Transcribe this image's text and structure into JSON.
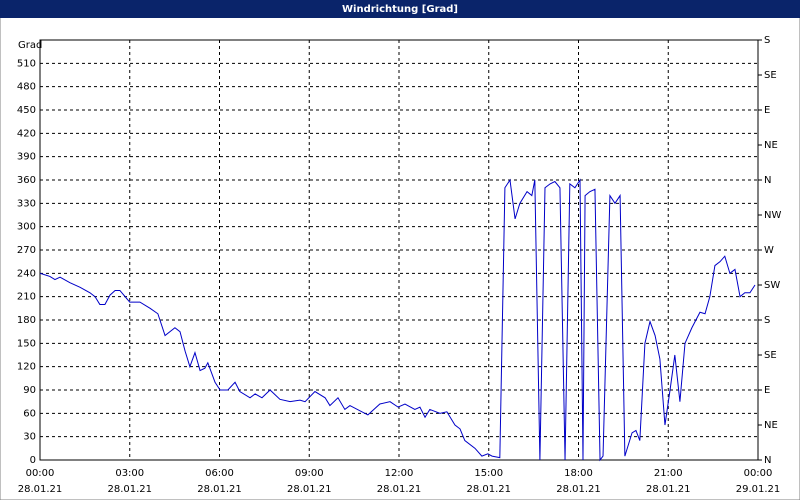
{
  "chart_data": {
    "type": "line",
    "title": "Windrichtung [Grad]",
    "ylabel": "Grad",
    "xlim": [
      0,
      24
    ],
    "xticks": [
      {
        "value": 0,
        "label": "00:00",
        "date": "28.01.21"
      },
      {
        "value": 3,
        "label": "03:00",
        "date": "28.01.21"
      },
      {
        "value": 6,
        "label": "06:00",
        "date": "28.01.21"
      },
      {
        "value": 9,
        "label": "09:00",
        "date": "28.01.21"
      },
      {
        "value": 12,
        "label": "12:00",
        "date": "28.01.21"
      },
      {
        "value": 15,
        "label": "15:00",
        "date": "28.01.21"
      },
      {
        "value": 18,
        "label": "18:00",
        "date": "28.01.21"
      },
      {
        "value": 21,
        "label": "21:00",
        "date": "28.01.21"
      },
      {
        "value": 24,
        "label": "00:00",
        "date": "29.01.21"
      }
    ],
    "ylim": [
      0,
      540
    ],
    "yticks": [
      0,
      30,
      60,
      90,
      120,
      150,
      180,
      210,
      240,
      270,
      300,
      330,
      360,
      390,
      420,
      450,
      480,
      510
    ],
    "y2lim": [
      0,
      540
    ],
    "y2ticks": [
      {
        "value": 0,
        "label": "N"
      },
      {
        "value": 45,
        "label": "NE"
      },
      {
        "value": 90,
        "label": "E"
      },
      {
        "value": 135,
        "label": "SE"
      },
      {
        "value": 180,
        "label": "S"
      },
      {
        "value": 225,
        "label": "SW"
      },
      {
        "value": 270,
        "label": "W"
      },
      {
        "value": 315,
        "label": "NW"
      },
      {
        "value": 360,
        "label": "N"
      },
      {
        "value": 405,
        "label": "NE"
      },
      {
        "value": 450,
        "label": "E"
      },
      {
        "value": 495,
        "label": "SE"
      },
      {
        "value": 540,
        "label": "S"
      }
    ],
    "grid": true,
    "x": [
      0,
      0.17,
      0.33,
      0.5,
      0.67,
      1.0,
      1.34,
      1.67,
      1.84,
      2.0,
      2.17,
      2.34,
      2.51,
      2.67,
      3.0,
      3.34,
      3.68,
      3.94,
      4.18,
      4.51,
      4.68,
      4.85,
      5.01,
      5.18,
      5.35,
      5.51,
      5.61,
      5.85,
      6.02,
      6.28,
      6.52,
      6.68,
      7.02,
      7.19,
      7.42,
      7.69,
      8.02,
      8.36,
      8.69,
      8.86,
      9.19,
      9.53,
      9.69,
      9.96,
      10.19,
      10.36,
      10.96,
      11.36,
      11.7,
      11.97,
      12.2,
      12.53,
      12.7,
      12.87,
      13.03,
      13.37,
      13.6,
      13.87,
      14.04,
      14.2,
      14.54,
      14.77,
      14.97,
      15.11,
      15.37,
      15.54,
      15.71,
      15.88,
      16.04,
      16.28,
      16.44,
      16.54,
      16.71,
      16.88,
      17.05,
      17.21,
      17.38,
      17.55,
      17.71,
      17.88,
      18.05,
      18.15,
      18.22,
      18.38,
      18.55,
      18.72,
      18.82,
      19.05,
      19.22,
      19.39,
      19.55,
      19.79,
      19.92,
      20.05,
      20.22,
      20.39,
      20.56,
      20.72,
      20.89,
      21.06,
      21.22,
      21.39,
      21.56,
      21.79,
      22.06,
      22.23,
      22.39,
      22.56,
      22.73,
      22.89,
      23.06,
      23.23,
      23.4,
      23.56,
      23.73,
      23.9
    ],
    "series": [
      {
        "name": "Windrichtung",
        "color": "#0000c8",
        "values": [
          240,
          238,
          236,
          232,
          235,
          228,
          222,
          215,
          210,
          200,
          200,
          212,
          218,
          218,
          203,
          203,
          195,
          188,
          160,
          170,
          165,
          140,
          120,
          138,
          115,
          118,
          125,
          100,
          90,
          90,
          100,
          88,
          80,
          85,
          80,
          90,
          78,
          75,
          77,
          75,
          88,
          80,
          70,
          80,
          65,
          70,
          58,
          72,
          75,
          68,
          72,
          65,
          68,
          55,
          65,
          60,
          62,
          45,
          40,
          25,
          15,
          5,
          8,
          5,
          3,
          350,
          360,
          310,
          330,
          345,
          340,
          360,
          0,
          350,
          355,
          358,
          350,
          0,
          355,
          350,
          360,
          0,
          340,
          345,
          348,
          0,
          5,
          340,
          330,
          340,
          5,
          35,
          38,
          25,
          150,
          178,
          160,
          130,
          45,
          90,
          135,
          75,
          150,
          170,
          190,
          188,
          210,
          250,
          255,
          262,
          240,
          245,
          210,
          215,
          215,
          225
        ]
      }
    ]
  }
}
